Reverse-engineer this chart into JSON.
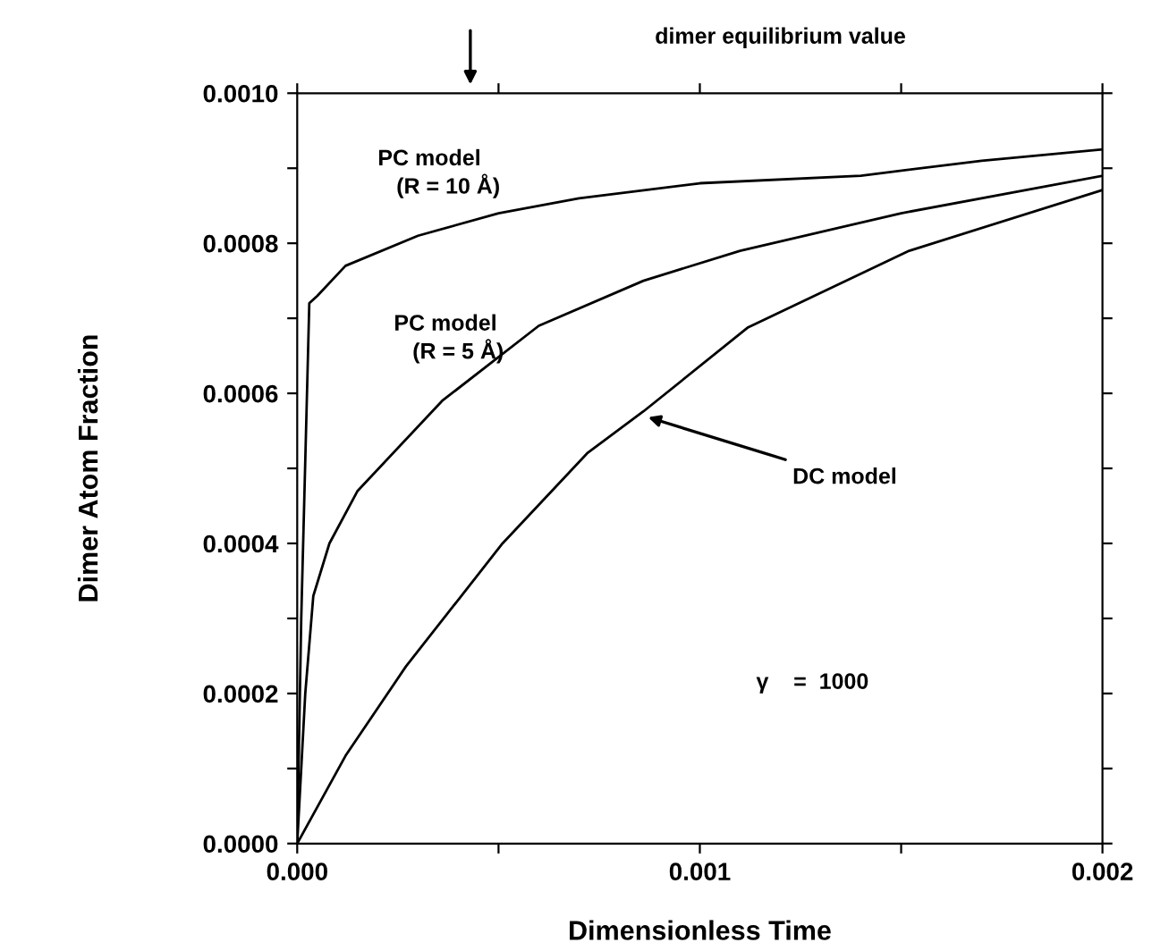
{
  "chart_data": {
    "type": "line",
    "xlabel": "Dimensionless Time",
    "ylabel": "Dimer Atom Fraction",
    "xlim": [
      0,
      0.002
    ],
    "ylim": [
      0,
      0.001
    ],
    "xticks": [
      {
        "value": 0,
        "label": "0.000"
      },
      {
        "value": 0.0005,
        "label": null
      },
      {
        "value": 0.001,
        "label": "0.001"
      },
      {
        "value": 0.0015,
        "label": null
      },
      {
        "value": 0.002,
        "label": "0.002"
      }
    ],
    "yticks": [
      {
        "value": 0,
        "label": "0.0000"
      },
      {
        "value": 0.0001,
        "label": null
      },
      {
        "value": 0.0002,
        "label": "0.0002"
      },
      {
        "value": 0.0003,
        "label": null
      },
      {
        "value": 0.0004,
        "label": "0.0004"
      },
      {
        "value": 0.0005,
        "label": null
      },
      {
        "value": 0.0006,
        "label": "0.0006"
      },
      {
        "value": 0.0007,
        "label": null
      },
      {
        "value": 0.0008,
        "label": "0.0008"
      },
      {
        "value": 0.0009,
        "label": null
      },
      {
        "value": 0.001,
        "label": "0.0010"
      }
    ],
    "grid": false,
    "marker": "none",
    "line_style": "solid",
    "series": [
      {
        "color": "#000000",
        "x": [
          0,
          1e-05,
          3e-05,
          5e-05,
          0.00012,
          0.0003,
          0.0005,
          0.0007,
          0.001,
          0.0014,
          0.0017,
          0.002
        ],
        "values": [
          0,
          0.0003,
          0.00072,
          0.00073,
          0.00077,
          0.00081,
          0.00084,
          0.00086,
          0.00088,
          0.00089,
          0.00091,
          0.000925
        ]
      },
      {
        "color": "#000000",
        "x": [
          0,
          2e-05,
          4e-05,
          8e-05,
          0.00015,
          0.00036,
          0.0006,
          0.00086,
          0.0011,
          0.0015,
          0.002
        ],
        "values": [
          0,
          0.0002,
          0.00033,
          0.0004,
          0.00047,
          0.00059,
          0.00069,
          0.00075,
          0.00079,
          0.00084,
          0.00089
        ]
      },
      {
        "color": "#000000",
        "x": [
          0,
          0.00012,
          0.00027,
          0.00051,
          0.00072,
          0.00086,
          0.00112,
          0.00152,
          0.002
        ],
        "values": [
          0,
          0.000117,
          0.000236,
          0.0004,
          0.00052,
          0.000576,
          0.000688,
          0.00079,
          0.000871
        ]
      }
    ],
    "annotations": [
      "PC model\n   (R = 10 Å)",
      "PC model\n   (R = 5 Å)",
      {
        "text": "DC model",
        "x": 0.00086,
        "y": 0.00057
      },
      "dimer equilibrium value",
      "γ    =  1000"
    ]
  }
}
